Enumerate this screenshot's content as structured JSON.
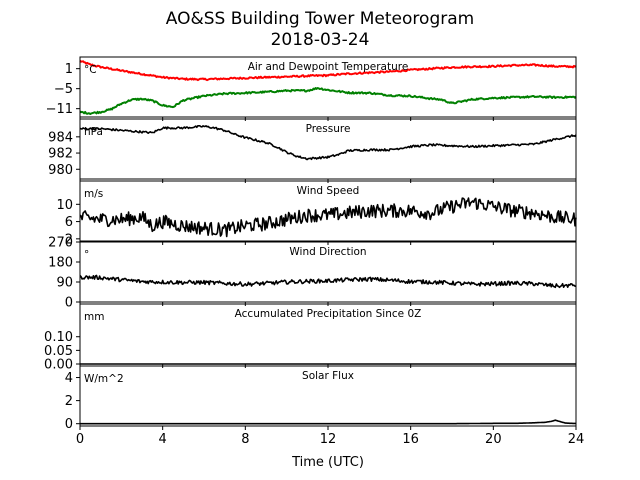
{
  "figure": {
    "title": "AO&SS Building Tower Meteorogram",
    "subtitle": "2018-03-24",
    "xlabel": "Time (UTC)"
  },
  "chart_data": [
    {
      "type": "line",
      "title": "Air and Dewpoint Temperature",
      "unit": "°C",
      "ylim": [
        -13.5,
        4.5
      ],
      "yticks": [
        1,
        -5,
        -11
      ],
      "ytick_labels": [
        "1",
        "−5",
        "−11"
      ],
      "xlim": [
        0,
        24
      ],
      "series": [
        {
          "color": "#ff0000",
          "x": [
            0,
            0.5,
            1,
            2,
            3,
            4,
            5,
            6,
            7,
            8,
            9,
            10,
            11,
            12,
            13,
            14,
            15,
            16,
            17,
            18,
            19,
            20,
            21,
            22,
            23,
            24
          ],
          "y": [
            3.3,
            2.2,
            1.5,
            0.4,
            -0.6,
            -1.6,
            -2.1,
            -2.2,
            -2.0,
            -1.8,
            -1.6,
            -1.4,
            -1.2,
            -1.0,
            -0.5,
            -0.2,
            0.1,
            0.6,
            1.0,
            1.4,
            1.6,
            1.7,
            2.0,
            2.1,
            1.7,
            1.6
          ]
        },
        {
          "color": "#008000",
          "x": [
            0,
            0.5,
            1,
            1.5,
            2,
            2.5,
            3,
            3.5,
            4,
            4.5,
            5,
            6,
            7,
            8,
            9,
            10,
            11,
            11.5,
            12,
            13,
            14,
            15,
            16,
            17,
            17.5,
            18,
            19,
            20,
            21,
            22,
            23,
            24
          ],
          "y": [
            -12.0,
            -12.4,
            -12.0,
            -11.2,
            -9.5,
            -8.3,
            -8.1,
            -8.6,
            -10.0,
            -10.5,
            -8.5,
            -7.2,
            -6.5,
            -6.3,
            -6.0,
            -5.6,
            -5.6,
            -4.8,
            -5.4,
            -6.2,
            -6.3,
            -7.0,
            -7.2,
            -8.0,
            -8.3,
            -9.4,
            -8.2,
            -7.8,
            -7.6,
            -7.4,
            -7.6,
            -7.5
          ]
        }
      ]
    },
    {
      "type": "line",
      "title": "Pressure",
      "unit": "hPa",
      "ylim": [
        978.8,
        986.2
      ],
      "yticks": [
        984,
        982,
        980
      ],
      "ytick_labels": [
        "984",
        "982",
        "980"
      ],
      "xlim": [
        0,
        24
      ],
      "series": [
        {
          "color": "#000000",
          "x": [
            0,
            1,
            2,
            3,
            3.5,
            4,
            5,
            6,
            6.5,
            7,
            7.5,
            8,
            8.5,
            9,
            9.5,
            10,
            10.5,
            11,
            11.5,
            12,
            12.5,
            13,
            14,
            15,
            16,
            17,
            18,
            19,
            20,
            21,
            22,
            23,
            24
          ],
          "y": [
            985.0,
            985.0,
            984.8,
            984.6,
            984.5,
            985.1,
            985.1,
            985.3,
            985.1,
            984.8,
            984.3,
            983.9,
            983.6,
            983.3,
            982.8,
            982.1,
            981.6,
            981.3,
            981.4,
            981.5,
            981.8,
            982.3,
            982.4,
            982.4,
            982.8,
            983.0,
            982.9,
            982.8,
            982.9,
            983.0,
            983.1,
            983.7,
            984.2
          ]
        }
      ]
    },
    {
      "type": "line",
      "title": "Wind Speed",
      "unit": "m/s",
      "ylim": [
        1.5,
        15.4
      ],
      "yticks": [
        10,
        6,
        2
      ],
      "ytick_labels": [
        "10",
        "6",
        "2"
      ],
      "xlim": [
        0,
        24
      ],
      "series": [
        {
          "color": "#000000",
          "noise": 1.6,
          "x": [
            0,
            1,
            2,
            3,
            3.5,
            4,
            5,
            6,
            7,
            8,
            9,
            10,
            11,
            12,
            13,
            14,
            15,
            16,
            17,
            18,
            19,
            20,
            21,
            22,
            23,
            24
          ],
          "y": [
            7,
            6.5,
            6.5,
            7,
            5,
            6,
            5,
            4.5,
            4,
            5,
            5.5,
            6.5,
            7.5,
            7.5,
            8,
            8.5,
            8.5,
            8.5,
            8,
            9.5,
            10.5,
            9.5,
            8.5,
            8,
            7,
            6.5
          ]
        }
      ]
    },
    {
      "type": "line",
      "title": "Wind Direction",
      "unit": "°",
      "ylim": [
        0,
        270
      ],
      "yticks": [
        270,
        180,
        90,
        0
      ],
      "ytick_labels": [
        "270",
        "180",
        "90",
        "0"
      ],
      "xlim": [
        0,
        24
      ],
      "series": [
        {
          "color": "#000000",
          "noise": 9,
          "x": [
            0,
            1,
            2,
            3,
            4,
            5,
            6,
            7,
            8,
            9,
            10,
            11,
            12,
            13,
            14,
            15,
            16,
            17,
            18,
            19,
            20,
            21,
            22,
            23,
            24
          ],
          "y": [
            112,
            110,
            100,
            92,
            90,
            88,
            88,
            84,
            80,
            84,
            90,
            93,
            95,
            100,
            103,
            98,
            92,
            90,
            85,
            80,
            82,
            85,
            82,
            72,
            76
          ]
        }
      ]
    },
    {
      "type": "line",
      "title": "Accumulated Precipitation Since 0Z",
      "unit": "mm",
      "ylim": [
        0,
        0.22
      ],
      "yticks": [
        0.1,
        0.05,
        0.0
      ],
      "ytick_labels": [
        "0.10",
        "0.05",
        "0.00"
      ],
      "xlim": [
        0,
        24
      ],
      "series": [
        {
          "color": "#000000",
          "x": [
            0,
            24
          ],
          "y": [
            0,
            0
          ]
        }
      ]
    },
    {
      "type": "line",
      "title": "Solar Flux",
      "unit": "W/m^2",
      "ylim": [
        -0.2,
        5.0
      ],
      "yticks": [
        4,
        2,
        0
      ],
      "ytick_labels": [
        "4",
        "2",
        "0"
      ],
      "xlim": [
        0,
        24
      ],
      "series": [
        {
          "color": "#000000",
          "x": [
            0,
            10,
            15,
            18,
            20,
            21,
            21.5,
            22,
            22.5,
            22.8,
            23,
            23.2,
            23.5,
            24
          ],
          "y": [
            0,
            0,
            0,
            0,
            0.03,
            0.03,
            0.05,
            0.08,
            0.12,
            0.2,
            0.3,
            0.2,
            0.05,
            0.02
          ]
        }
      ]
    }
  ],
  "xaxis": {
    "ticks": [
      0,
      4,
      8,
      12,
      16,
      20,
      24
    ],
    "tick_labels": [
      "0",
      "4",
      "8",
      "12",
      "16",
      "20",
      "24"
    ]
  }
}
